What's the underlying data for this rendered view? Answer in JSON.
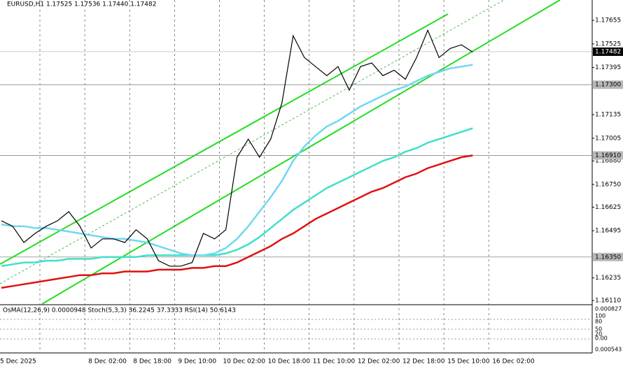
{
  "chart_data": {
    "type": "line",
    "header": "EURUSD,H1  1.17525 1.17536 1.17440 1.17482",
    "categories": [
      "5 Dec 2025",
      null,
      null,
      null,
      "8 Dec 02:00",
      null,
      null,
      null,
      "8 Dec 18:00",
      null,
      null,
      null,
      "9 Dec 10:00",
      null,
      null,
      null,
      "10 Dec 02:00",
      null,
      null,
      null,
      "10 Dec 18:00",
      null,
      null,
      null,
      "11 Dec 10:00",
      null,
      null,
      null,
      "12 Dec 02:00",
      null,
      null,
      null,
      "12 Dec 18:00",
      null,
      null,
      null,
      "15 Dec 10:00",
      null,
      null,
      null,
      "16 Dec 02:00",
      null,
      null
    ],
    "series": [
      {
        "color": "#000000",
        "values": [
          1.1655,
          1.1652,
          1.1643,
          1.1648,
          1.1652,
          1.1655,
          1.166,
          1.1652,
          1.164,
          1.1645,
          1.1645,
          1.1643,
          1.165,
          1.1645,
          1.1633,
          1.163,
          1.163,
          1.1632,
          1.1648,
          1.1645,
          1.165,
          1.169,
          1.17,
          1.169,
          1.17,
          1.172,
          1.1757,
          1.1745,
          1.174,
          1.1735,
          1.174,
          1.1727,
          1.174,
          1.1742,
          1.1735,
          1.1738,
          1.1733,
          1.1745,
          1.176,
          1.1745,
          1.175,
          1.1752,
          1.1748
        ]
      },
      {
        "color": "#70d8f0",
        "values": [
          1.1653,
          1.1652,
          1.1652,
          1.1651,
          1.1651,
          1.165,
          1.1649,
          1.1648,
          1.1647,
          1.1646,
          1.1645,
          1.1645,
          1.1644,
          1.1643,
          1.1641,
          1.1639,
          1.1637,
          1.1636,
          1.1636,
          1.1637,
          1.164,
          1.1645,
          1.1652,
          1.166,
          1.1668,
          1.1677,
          1.1688,
          1.1696,
          1.1702,
          1.1707,
          1.171,
          1.1714,
          1.1718,
          1.1721,
          1.1724,
          1.1727,
          1.1729,
          1.1732,
          1.1735,
          1.1737,
          1.1739,
          1.174,
          1.1741
        ]
      },
      {
        "color": "#40e0c8",
        "values": [
          1.163,
          1.1631,
          1.1632,
          1.1632,
          1.1633,
          1.1633,
          1.1634,
          1.1634,
          1.1634,
          1.1635,
          1.1635,
          1.1635,
          1.1635,
          1.1636,
          1.1636,
          1.1636,
          1.1636,
          1.1636,
          1.1636,
          1.1636,
          1.1637,
          1.1639,
          1.1642,
          1.1646,
          1.1651,
          1.1656,
          1.1661,
          1.1665,
          1.1669,
          1.1673,
          1.1676,
          1.1679,
          1.1682,
          1.1685,
          1.1688,
          1.169,
          1.1693,
          1.1695,
          1.1698,
          1.17,
          1.1702,
          1.1704,
          1.1706
        ]
      },
      {
        "color": "#e01010",
        "values": [
          1.1618,
          1.1619,
          1.162,
          1.1621,
          1.1622,
          1.1623,
          1.1624,
          1.1625,
          1.1625,
          1.1626,
          1.1626,
          1.1627,
          1.1627,
          1.1627,
          1.1628,
          1.1628,
          1.1628,
          1.1629,
          1.1629,
          1.163,
          1.163,
          1.1632,
          1.1635,
          1.1638,
          1.1641,
          1.1645,
          1.1648,
          1.1652,
          1.1656,
          1.1659,
          1.1662,
          1.1665,
          1.1668,
          1.1671,
          1.1673,
          1.1676,
          1.1679,
          1.1681,
          1.1684,
          1.1686,
          1.1688,
          1.169,
          1.1691
        ]
      }
    ],
    "ylim": [
      1.16091,
      1.17767
    ],
    "yticks": [
      1.17655,
      1.17525,
      1.17395,
      1.17135,
      1.17005,
      {
        "value": 1.1688,
        "label": "1.16880"
      },
      {
        "value": 1.1675,
        "label": "1.16750"
      },
      1.16625,
      1.16495,
      1.16235,
      {
        "value": 1.1611,
        "label": "1.16110"
      }
    ],
    "levels": [
      {
        "value": 1.173,
        "label": "1.17300"
      },
      {
        "value": 1.1691,
        "label": "1.16910"
      },
      {
        "value": 1.1635,
        "label": "1.16350"
      }
    ],
    "current": {
      "value": 1.17482,
      "label": "1.17482"
    }
  },
  "indicator_panel": {
    "header": "OsMA(12,26,9) 0.0000948  Stoch(5,3,3) 36.2245 37.3333  RSI(14) 50.6143",
    "scale_labels": [
      "0.000827",
      "100",
      "80",
      "50",
      "20",
      "0.00",
      "0.000543"
    ]
  }
}
